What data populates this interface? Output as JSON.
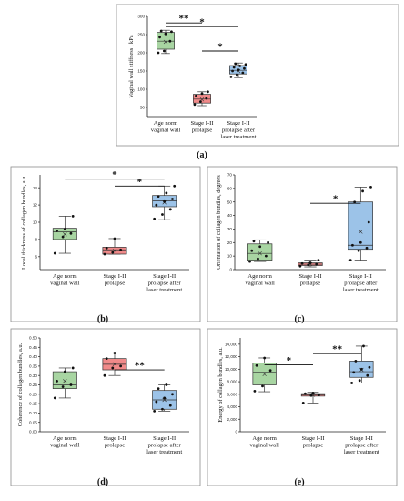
{
  "colors": {
    "green": "#a8d5a2",
    "red": "#f08a8a",
    "blue": "#9cc3e8"
  },
  "chart_data": [
    {
      "id": "a",
      "type": "box",
      "label": "(a)",
      "ylabel": "Vaginal wall stiffness , kPa",
      "ylim": [
        25,
        300
      ],
      "yticks": [
        50,
        100,
        150,
        200,
        250,
        300
      ],
      "categories": [
        "Age norm\nvaginal wall",
        "Stage I-II\nprolapse",
        "Stage I-II\nprolapse after\nlaser treatment"
      ],
      "boxes": [
        {
          "q1": 210,
          "median": 232,
          "q3": 256,
          "min": 198,
          "max": 262,
          "mean": 230,
          "points": [
            200,
            205,
            232,
            243,
            252,
            258,
            260
          ]
        },
        {
          "q1": 62,
          "median": 73,
          "q3": 86,
          "min": 55,
          "max": 93,
          "mean": 72,
          "points": [
            58,
            66,
            75,
            82,
            88,
            93
          ]
        },
        {
          "q1": 142,
          "median": 152,
          "q3": 165,
          "min": 132,
          "max": 172,
          "mean": 150,
          "points": [
            134,
            140,
            145,
            150,
            153,
            157,
            160,
            164,
            168,
            170
          ]
        }
      ],
      "significance": [
        {
          "from": 0,
          "to": 1,
          "label": "**",
          "y": 282
        },
        {
          "from": 0,
          "to": 2,
          "label": "*",
          "y": 272
        },
        {
          "from": 1,
          "to": 2,
          "label": "*",
          "y": 205
        }
      ]
    },
    {
      "id": "b",
      "type": "box",
      "label": "(b)",
      "ylabel": "Local thickness of collagen bundles, a.u.",
      "ylim": [
        4.5,
        15.5
      ],
      "yticks": [
        6,
        8,
        10,
        12,
        14
      ],
      "categories": [
        "Age norm\nvaginal wall",
        "Stage I-II\nprolapse",
        "Stage I-II\nprolapse after\nlaser treatment"
      ],
      "boxes": [
        {
          "q1": 8.0,
          "median": 8.9,
          "q3": 9.3,
          "min": 6.4,
          "max": 10.7,
          "mean": 8.6,
          "points": [
            6.4,
            8.3,
            8.7,
            9.0,
            9.2,
            10.7
          ]
        },
        {
          "q1": 6.3,
          "median": 6.8,
          "q3": 7.1,
          "min": 6.3,
          "max": 8.1,
          "mean": 6.7,
          "points": [
            6.3,
            6.5,
            6.8,
            7.0,
            8.1
          ]
        },
        {
          "q1": 11.8,
          "median": 12.5,
          "q3": 13.1,
          "min": 10.3,
          "max": 14.2,
          "mean": 12.3,
          "points": [
            10.4,
            10.9,
            11.5,
            12.0,
            12.4,
            12.7,
            13.0,
            13.4,
            14.2
          ]
        }
      ],
      "significance": [
        {
          "from": 0,
          "to": 2,
          "label": "*",
          "y": 15.0
        },
        {
          "from": 1,
          "to": 2,
          "label": "*",
          "y": 14.2
        }
      ]
    },
    {
      "id": "c",
      "type": "box",
      "label": "(c)",
      "ylabel": "Orientation of collagen bundles, degrees",
      "ylim": [
        0,
        70
      ],
      "yticks": [
        0,
        10,
        20,
        30,
        40,
        50,
        60,
        70
      ],
      "categories": [
        "Age norm\nvaginal wall",
        "Stage I-II\nprolapse",
        "Stage I-II\nprolapse after\nlaser treatment"
      ],
      "boxes": [
        {
          "q1": 7,
          "median": 12,
          "q3": 19,
          "min": 6,
          "max": 22,
          "mean": 12,
          "points": [
            6,
            8,
            10,
            14,
            17,
            20,
            21
          ]
        },
        {
          "q1": 3,
          "median": 4,
          "q3": 5,
          "min": 2,
          "max": 7,
          "mean": 4,
          "points": [
            2.5,
            3.5,
            4,
            4.5,
            5,
            7
          ]
        },
        {
          "q1": 15,
          "median": 18,
          "q3": 50,
          "min": 7,
          "max": 61,
          "mean": 28,
          "points": [
            7,
            14,
            16,
            18,
            20,
            35,
            50,
            58,
            61
          ]
        }
      ],
      "significance": [
        {
          "from": 1,
          "to": 2,
          "label": "*",
          "y": 49
        }
      ]
    },
    {
      "id": "d",
      "type": "box",
      "label": "(d)",
      "ylabel": "Coherence of collagen bundles, a.u.",
      "ylim": [
        0,
        0.5
      ],
      "yticks": [
        0,
        0.05,
        0.1,
        0.15,
        0.2,
        0.25,
        0.3,
        0.35,
        0.4,
        0.45,
        0.5
      ],
      "ytickLabels": [
        "0.00",
        "0.05",
        "0.10",
        "0.15",
        "0.20",
        "0.25",
        "0.30",
        "0.35",
        "0.40",
        "0.45",
        "0.50"
      ],
      "categories": [
        "Age norm\nvaginal wall",
        "Stage I-II\nprolapse",
        "Stage I-II\nprolapse after\nlaser treatment"
      ],
      "boxes": [
        {
          "q1": 0.23,
          "median": 0.25,
          "q3": 0.32,
          "min": 0.18,
          "max": 0.34,
          "mean": 0.27,
          "points": [
            0.18,
            0.24,
            0.25,
            0.27,
            0.32,
            0.34
          ]
        },
        {
          "q1": 0.33,
          "median": 0.36,
          "q3": 0.39,
          "min": 0.3,
          "max": 0.42,
          "mean": 0.36,
          "points": [
            0.3,
            0.34,
            0.35,
            0.39,
            0.42
          ]
        },
        {
          "q1": 0.12,
          "median": 0.17,
          "q3": 0.22,
          "min": 0.11,
          "max": 0.25,
          "mean": 0.17,
          "points": [
            0.11,
            0.12,
            0.14,
            0.16,
            0.18,
            0.2,
            0.23,
            0.25
          ]
        }
      ],
      "significance": [
        {
          "from": 1,
          "to": 2,
          "label": "**",
          "y": 0.33
        }
      ]
    },
    {
      "id": "e",
      "type": "box",
      "label": "(e)",
      "ylabel": "Energy of collagen bundles, a.u.",
      "ylim": [
        0,
        15000
      ],
      "yticks": [
        0,
        2000,
        4000,
        6000,
        8000,
        10000,
        12000,
        14000
      ],
      "ytickLabels": [
        "0",
        "2,000",
        "4,000",
        "6,000",
        "8,000",
        "10,000",
        "12,000",
        "14,000"
      ],
      "categories": [
        "Age norm\nvaginal wall",
        "Stage I-II\nprolapse",
        "Stage I-II\nprolapse after\nlaser treatment"
      ],
      "boxes": [
        {
          "q1": 7500,
          "median": 9500,
          "q3": 11000,
          "min": 6400,
          "max": 11800,
          "mean": 9200,
          "points": [
            6500,
            7300,
            9800,
            10600,
            11800
          ]
        },
        {
          "q1": 5700,
          "median": 5900,
          "q3": 6100,
          "min": 4600,
          "max": 6300,
          "mean": 5900,
          "points": [
            4600,
            5800,
            5900,
            6100,
            6200
          ]
        },
        {
          "q1": 8700,
          "median": 9600,
          "q3": 11300,
          "min": 7800,
          "max": 13700,
          "mean": 9900,
          "points": [
            7800,
            8200,
            9000,
            9500,
            10000,
            10300,
            11300,
            13700
          ]
        }
      ],
      "significance": [
        {
          "from": 0,
          "to": 1,
          "label": "*",
          "y": 10700
        },
        {
          "from": 1,
          "to": 2,
          "label": "**",
          "y": 12500
        }
      ]
    }
  ]
}
